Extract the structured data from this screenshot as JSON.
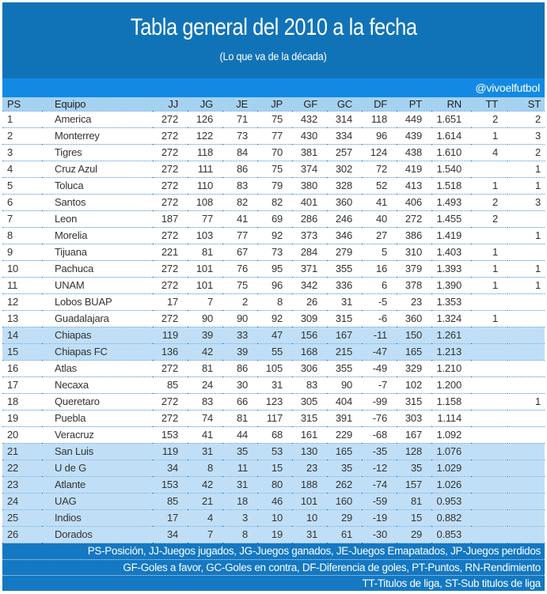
{
  "header": {
    "title": "Tabla general del 2010 a la fecha",
    "subtitle": "(Lo que va de la década)",
    "social_handle": "@vivoelfutbol"
  },
  "colors": {
    "title_band": "#1173b7",
    "social_band": "#128ae4",
    "header_row": "#a6d2f1",
    "row_highlight": "#c0dff7",
    "footer_band": "#1478c2",
    "dotted_border": "#3f8ecf",
    "text": "#333333"
  },
  "chart_data": {
    "type": "table",
    "title": "Tabla general del 2010 a la fecha",
    "subtitle": "(Lo que va de la década)",
    "columns": [
      "PS",
      "Equipo",
      "JJ",
      "JG",
      "JE",
      "JP",
      "GF",
      "GC",
      "DF",
      "PT",
      "RN",
      "TT",
      "ST"
    ],
    "rows": [
      {
        "cells": [
          "1",
          "America",
          "272",
          "126",
          "71",
          "75",
          "432",
          "314",
          "118",
          "449",
          "1.651",
          "2",
          "2"
        ],
        "highlight": false
      },
      {
        "cells": [
          "2",
          "Monterrey",
          "272",
          "122",
          "73",
          "77",
          "430",
          "334",
          "96",
          "439",
          "1.614",
          "1",
          "3"
        ],
        "highlight": false
      },
      {
        "cells": [
          "3",
          "Tigres",
          "272",
          "118",
          "84",
          "70",
          "381",
          "257",
          "124",
          "438",
          "1.610",
          "4",
          "2"
        ],
        "highlight": false
      },
      {
        "cells": [
          "4",
          "Cruz Azul",
          "272",
          "111",
          "86",
          "75",
          "374",
          "302",
          "72",
          "419",
          "1.540",
          "",
          "1"
        ],
        "highlight": false
      },
      {
        "cells": [
          "5",
          "Toluca",
          "272",
          "110",
          "83",
          "79",
          "380",
          "328",
          "52",
          "413",
          "1.518",
          "1",
          "1"
        ],
        "highlight": false
      },
      {
        "cells": [
          "6",
          "Santos",
          "272",
          "108",
          "82",
          "82",
          "401",
          "360",
          "41",
          "406",
          "1.493",
          "2",
          "3"
        ],
        "highlight": false
      },
      {
        "cells": [
          "7",
          "Leon",
          "187",
          "77",
          "41",
          "69",
          "286",
          "246",
          "40",
          "272",
          "1.455",
          "2",
          ""
        ],
        "highlight": false
      },
      {
        "cells": [
          "8",
          "Morelia",
          "272",
          "103",
          "77",
          "92",
          "373",
          "346",
          "27",
          "386",
          "1.419",
          "",
          "1"
        ],
        "highlight": false
      },
      {
        "cells": [
          "9",
          "Tijuana",
          "221",
          "81",
          "67",
          "73",
          "284",
          "279",
          "5",
          "310",
          "1.403",
          "1",
          ""
        ],
        "highlight": false
      },
      {
        "cells": [
          "10",
          "Pachuca",
          "272",
          "101",
          "76",
          "95",
          "371",
          "355",
          "16",
          "379",
          "1.393",
          "1",
          "1"
        ],
        "highlight": false
      },
      {
        "cells": [
          "11",
          "UNAM",
          "272",
          "101",
          "75",
          "96",
          "342",
          "336",
          "6",
          "378",
          "1.390",
          "1",
          "1"
        ],
        "highlight": false
      },
      {
        "cells": [
          "12",
          "Lobos BUAP",
          "17",
          "7",
          "2",
          "8",
          "26",
          "31",
          "-5",
          "23",
          "1.353",
          "",
          ""
        ],
        "highlight": false
      },
      {
        "cells": [
          "13",
          "Guadalajara",
          "272",
          "90",
          "90",
          "92",
          "309",
          "315",
          "-6",
          "360",
          "1.324",
          "1",
          ""
        ],
        "highlight": false
      },
      {
        "cells": [
          "14",
          "Chiapas",
          "119",
          "39",
          "33",
          "47",
          "156",
          "167",
          "-11",
          "150",
          "1.261",
          "",
          ""
        ],
        "highlight": true
      },
      {
        "cells": [
          "15",
          "Chiapas FC",
          "136",
          "42",
          "39",
          "55",
          "168",
          "215",
          "-47",
          "165",
          "1.213",
          "",
          ""
        ],
        "highlight": true
      },
      {
        "cells": [
          "16",
          "Atlas",
          "272",
          "81",
          "86",
          "105",
          "306",
          "355",
          "-49",
          "329",
          "1.210",
          "",
          ""
        ],
        "highlight": false
      },
      {
        "cells": [
          "17",
          "Necaxa",
          "85",
          "24",
          "30",
          "31",
          "83",
          "90",
          "-7",
          "102",
          "1.200",
          "",
          ""
        ],
        "highlight": false
      },
      {
        "cells": [
          "18",
          "Queretaro",
          "272",
          "83",
          "66",
          "123",
          "305",
          "404",
          "-99",
          "315",
          "1.158",
          "",
          "1"
        ],
        "highlight": false
      },
      {
        "cells": [
          "19",
          "Puebla",
          "272",
          "74",
          "81",
          "117",
          "315",
          "391",
          "-76",
          "303",
          "1.114",
          "",
          ""
        ],
        "highlight": false
      },
      {
        "cells": [
          "20",
          "Veracruz",
          "153",
          "41",
          "44",
          "68",
          "161",
          "229",
          "-68",
          "167",
          "1.092",
          "",
          ""
        ],
        "highlight": false
      },
      {
        "cells": [
          "21",
          "San Luis",
          "119",
          "31",
          "35",
          "53",
          "130",
          "165",
          "-35",
          "128",
          "1.076",
          "",
          ""
        ],
        "highlight": true
      },
      {
        "cells": [
          "22",
          "U de G",
          "34",
          "8",
          "11",
          "15",
          "23",
          "35",
          "-12",
          "35",
          "1.029",
          "",
          ""
        ],
        "highlight": true
      },
      {
        "cells": [
          "23",
          "Atlante",
          "153",
          "42",
          "31",
          "80",
          "188",
          "262",
          "-74",
          "157",
          "1.026",
          "",
          ""
        ],
        "highlight": true
      },
      {
        "cells": [
          "24",
          "UAG",
          "85",
          "21",
          "18",
          "46",
          "101",
          "160",
          "-59",
          "81",
          "0.953",
          "",
          ""
        ],
        "highlight": true
      },
      {
        "cells": [
          "25",
          "Indios",
          "17",
          "4",
          "3",
          "10",
          "10",
          "29",
          "-19",
          "15",
          "0.882",
          "",
          ""
        ],
        "highlight": true
      },
      {
        "cells": [
          "26",
          "Dorados",
          "34",
          "7",
          "8",
          "19",
          "31",
          "61",
          "-30",
          "29",
          "0.853",
          "",
          ""
        ],
        "highlight": true
      }
    ]
  },
  "footer": {
    "lines": [
      "PS-Posición, JJ-Juegos jugados, JG-Juegos ganados, JE-Juegos Emapatados, JP-Juegos perdidos",
      "GF-Goles a favor, GC-Goles en contra, DF-Diferencia de goles, PT-Puntos, RN-Rendimiento",
      "TT-Titulos de liga, ST-Sub titulos de liga"
    ]
  }
}
